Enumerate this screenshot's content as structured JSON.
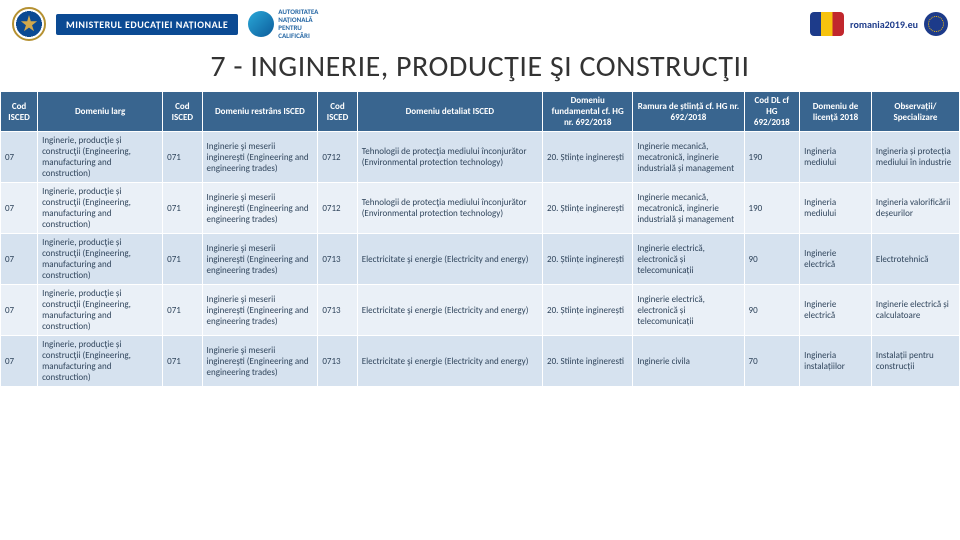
{
  "header": {
    "ministerLabel": "MINISTERUL EDUCAȚIEI NAȚIONALE",
    "ancLines": [
      "AUTORITATEA",
      "NAȚIONALĂ",
      "PENTRU",
      "CALIFICĂRI"
    ],
    "ro2019": "romania2019.eu"
  },
  "title": "7 - INGINERIE, PRODUCŢIE ŞI CONSTRUCŢII",
  "columns": [
    "Cod ISCED",
    "Domeniu larg",
    "Cod ISCED",
    "Domeniu restrâns ISCED",
    "Cod ISCED",
    "Domeniu detaliat ISCED",
    "Domeniu fundamental cf. HG nr. 692/2018",
    "Ramura de știință cf. HG nr. 692/2018",
    "Cod DL cf HG 692/2018",
    "Domeniu de licență 2018",
    "Observații/ Specializare"
  ],
  "rows": [
    {
      "c": [
        "07",
        "Inginerie, producţie și construcţii (Engineering, manufacturing and construction)",
        "071",
        "Inginerie şi meserii inginereşti (Engineering and engineering trades)",
        "0712",
        "Tehnologii de protecţia mediului înconjurător (Environmental protection technology)",
        "20. Științe inginerești",
        "Inginerie mecanică, mecatronică, inginerie industrială și management",
        "190",
        "Ingineria mediului",
        "Ingineria și protecția mediului în industrie"
      ]
    },
    {
      "c": [
        "07",
        "Inginerie, producţie și construcţii (Engineering, manufacturing and construction)",
        "071",
        "Inginerie şi meserii inginereşti (Engineering and engineering trades)",
        "0712",
        "Tehnologii de protecţia mediului înconjurător (Environmental protection technology)",
        "20. Științe inginerești",
        "Inginerie mecanică, mecatronică, inginerie industrială și management",
        "190",
        "Ingineria mediului",
        "Ingineria valorificării deșeurilor"
      ]
    },
    {
      "c": [
        "07",
        "Inginerie, producţie și construcţii (Engineering, manufacturing and construction)",
        "071",
        "Inginerie şi meserii inginereşti (Engineering and engineering trades)",
        "0713",
        "Electricitate şi energie (Electricity and energy)",
        "20. Științe inginerești",
        "Inginerie electrică, electronică și telecomunicații",
        "90",
        "Inginerie electrică",
        "Electrotehnică"
      ]
    },
    {
      "c": [
        "07",
        "Inginerie, producţie și construcţii (Engineering, manufacturing and construction)",
        "071",
        "Inginerie şi meserii inginereşti (Engineering and engineering trades)",
        "0713",
        "Electricitate şi energie (Electricity and energy)",
        "20. Științe inginerești",
        "Inginerie electrică, electronică și telecomunicații",
        "90",
        "Inginerie electrică",
        "Inginerie electrică și calculatoare"
      ]
    },
    {
      "c": [
        "07",
        "Inginerie, producţie și construcţii (Engineering, manufacturing and construction)",
        "071",
        "Inginerie şi meserii inginereşti (Engineering and engineering trades)",
        "0713",
        "Electricitate şi energie (Electricity and energy)",
        "20. Stiinte ingineresti",
        "Inginerie civila",
        "70",
        "Ingineria instalațiilor",
        "Instalații pentru construcții"
      ]
    }
  ],
  "style": {
    "headerBg": "#39658f",
    "band0": "#d6e2ef",
    "band1": "#eaf0f7"
  }
}
